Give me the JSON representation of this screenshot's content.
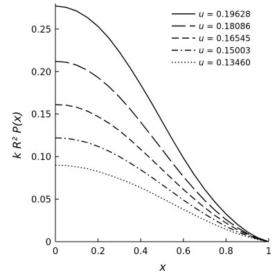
{
  "chart_data": {
    "type": "line",
    "xlabel": "x",
    "ylabel": "k R² P(x)",
    "xlim": [
      0,
      1
    ],
    "ylim": [
      0,
      0.28
    ],
    "xticks": [
      "0",
      "0.2",
      "0.4",
      "0.6",
      "0.8",
      "1"
    ],
    "yticks": [
      "0",
      "0.05",
      "0.10",
      "0.15",
      "0.20",
      "0.25"
    ],
    "legend_position": "top-right",
    "legend_var": "u",
    "x": [
      0,
      0.05,
      0.1,
      0.15,
      0.2,
      0.25,
      0.3,
      0.35,
      0.4,
      0.45,
      0.5,
      0.55,
      0.6,
      0.65,
      0.7,
      0.75,
      0.8,
      0.85,
      0.9,
      0.95,
      1.0
    ],
    "series": [
      {
        "name": "= 0.19628",
        "dash": "solid",
        "values": [
          0.277,
          0.2755,
          0.271,
          0.2635,
          0.253,
          0.2395,
          0.223,
          0.2045,
          0.1845,
          0.1635,
          0.1415,
          0.1195,
          0.0985,
          0.079,
          0.0615,
          0.046,
          0.0325,
          0.021,
          0.0115,
          0.0045,
          0.0
        ]
      },
      {
        "name": "= 0.18086",
        "dash": "longdash",
        "values": [
          0.212,
          0.211,
          0.2075,
          0.2015,
          0.193,
          0.1825,
          0.17,
          0.156,
          0.1405,
          0.1245,
          0.1085,
          0.092,
          0.0765,
          0.062,
          0.0485,
          0.0365,
          0.026,
          0.017,
          0.0095,
          0.0035,
          0.0
        ]
      },
      {
        "name": "= 0.16545",
        "dash": "dash",
        "values": [
          0.161,
          0.1605,
          0.158,
          0.1535,
          0.147,
          0.1395,
          0.1305,
          0.12,
          0.1085,
          0.097,
          0.085,
          0.073,
          0.0615,
          0.0505,
          0.04,
          0.0305,
          0.022,
          0.0145,
          0.0085,
          0.003,
          0.0
        ]
      },
      {
        "name": "= 0.15003",
        "dash": "dashdot",
        "values": [
          0.122,
          0.1215,
          0.1195,
          0.1165,
          0.112,
          0.1065,
          0.1,
          0.0925,
          0.0845,
          0.076,
          0.067,
          0.058,
          0.049,
          0.0405,
          0.0325,
          0.025,
          0.018,
          0.012,
          0.0072,
          0.003,
          0.0
        ]
      },
      {
        "name": "= 0.13460",
        "dash": "dot",
        "values": [
          0.09,
          0.0895,
          0.088,
          0.0858,
          0.0825,
          0.0785,
          0.074,
          0.069,
          0.0635,
          0.0575,
          0.051,
          0.0445,
          0.038,
          0.0315,
          0.0255,
          0.0198,
          0.0145,
          0.0098,
          0.0058,
          0.0025,
          0.0
        ]
      }
    ]
  }
}
